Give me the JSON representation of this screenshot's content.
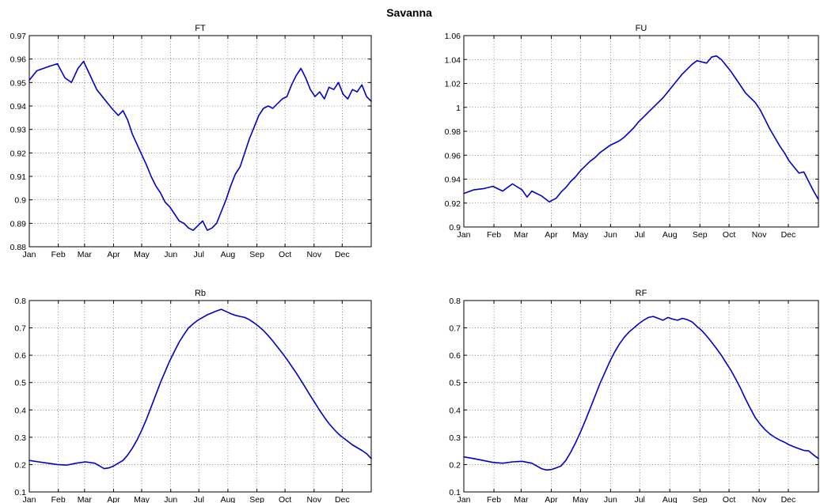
{
  "figure": {
    "title": "Savanna"
  },
  "chart_data": [
    {
      "id": "FT",
      "type": "line",
      "title": "FT",
      "xlabel": "",
      "ylabel": "",
      "x_tick_labels": [
        "Jan",
        "Feb",
        "Mar",
        "Apr",
        "May",
        "Jun",
        "Jul",
        "Aug",
        "Sep",
        "Oct",
        "Nov",
        "Dec"
      ],
      "y_tick_labels": [
        "0.88",
        "0.89",
        "0.9",
        "0.91",
        "0.92",
        "0.93",
        "0.94",
        "0.95",
        "0.96",
        "0.97"
      ],
      "xlim": [
        0,
        365
      ],
      "ylim": [
        0.88,
        0.97
      ],
      "grid": true,
      "color": "#0000cc",
      "series": [
        {
          "x": [
            0,
            8,
            15,
            22,
            30,
            38,
            45,
            52,
            58,
            65,
            72,
            80,
            88,
            95,
            100,
            105,
            110,
            118,
            125,
            130,
            135,
            140,
            145,
            150,
            155,
            160,
            165,
            170,
            175,
            180,
            185,
            190,
            195,
            200,
            205,
            210,
            215,
            220,
            225,
            230,
            235,
            240,
            245,
            250,
            255,
            260,
            265,
            270,
            275,
            280,
            285,
            290,
            295,
            300,
            305,
            310,
            315,
            320,
            325,
            330,
            335,
            340,
            345,
            350,
            355,
            360,
            365
          ],
          "y": [
            0.951,
            0.955,
            0.956,
            0.957,
            0.958,
            0.952,
            0.95,
            0.956,
            0.959,
            0.953,
            0.947,
            0.943,
            0.939,
            0.936,
            0.938,
            0.934,
            0.928,
            0.921,
            0.915,
            0.91,
            0.906,
            0.903,
            0.899,
            0.897,
            0.894,
            0.891,
            0.89,
            0.888,
            0.887,
            0.889,
            0.891,
            0.887,
            0.888,
            0.89,
            0.895,
            0.9,
            0.906,
            0.911,
            0.914,
            0.92,
            0.926,
            0.931,
            0.936,
            0.939,
            0.94,
            0.939,
            0.941,
            0.943,
            0.944,
            0.949,
            0.953,
            0.956,
            0.952,
            0.947,
            0.944,
            0.946,
            0.943,
            0.948,
            0.947,
            0.95,
            0.945,
            0.943,
            0.947,
            0.946,
            0.949,
            0.944,
            0.942
          ]
        }
      ]
    },
    {
      "id": "FU",
      "type": "line",
      "title": "FU",
      "xlabel": "",
      "ylabel": "",
      "x_tick_labels": [
        "Jan",
        "Feb",
        "Mar",
        "Apr",
        "May",
        "Jun",
        "Jul",
        "Aug",
        "Sep",
        "Oct",
        "Nov",
        "Dec"
      ],
      "y_tick_labels": [
        "0.9",
        "0.92",
        "0.94",
        "0.96",
        "0.98",
        "1",
        "1.02",
        "1.04",
        "1.06"
      ],
      "xlim": [
        0,
        365
      ],
      "ylim": [
        0.9,
        1.06
      ],
      "grid": true,
      "color": "#0000cc",
      "series": [
        {
          "x": [
            0,
            10,
            20,
            30,
            40,
            50,
            60,
            65,
            70,
            80,
            88,
            95,
            100,
            105,
            110,
            115,
            120,
            125,
            130,
            135,
            140,
            145,
            150,
            155,
            160,
            165,
            170,
            175,
            180,
            185,
            190,
            195,
            200,
            205,
            210,
            215,
            220,
            225,
            230,
            235,
            240,
            245,
            250,
            255,
            260,
            265,
            270,
            275,
            280,
            285,
            290,
            295,
            300,
            305,
            310,
            315,
            320,
            325,
            330,
            335,
            340,
            345,
            350,
            355,
            360,
            365
          ],
          "y": [
            0.928,
            0.931,
            0.932,
            0.934,
            0.93,
            0.936,
            0.931,
            0.925,
            0.93,
            0.926,
            0.921,
            0.924,
            0.929,
            0.933,
            0.938,
            0.942,
            0.947,
            0.951,
            0.955,
            0.958,
            0.962,
            0.965,
            0.968,
            0.97,
            0.972,
            0.975,
            0.979,
            0.983,
            0.988,
            0.992,
            0.996,
            1.0,
            1.004,
            1.008,
            1.013,
            1.018,
            1.023,
            1.028,
            1.032,
            1.036,
            1.039,
            1.038,
            1.037,
            1.042,
            1.043,
            1.04,
            1.035,
            1.03,
            1.024,
            1.018,
            1.012,
            1.008,
            1.004,
            0.998,
            0.99,
            0.982,
            0.975,
            0.968,
            0.962,
            0.955,
            0.95,
            0.945,
            0.946,
            0.938,
            0.93,
            0.923
          ]
        }
      ]
    },
    {
      "id": "Rb",
      "type": "line",
      "title": "Rb",
      "xlabel": "",
      "ylabel": "",
      "x_tick_labels": [
        "Jan",
        "Feb",
        "Mar",
        "Apr",
        "May",
        "Jun",
        "Jul",
        "Aug",
        "Sep",
        "Oct",
        "Nov",
        "Dec"
      ],
      "y_tick_labels": [
        "0.1",
        "0.2",
        "0.3",
        "0.4",
        "0.5",
        "0.6",
        "0.7",
        "0.8"
      ],
      "xlim": [
        0,
        365
      ],
      "ylim": [
        0.1,
        0.8
      ],
      "grid": true,
      "color": "#0000cc",
      "series": [
        {
          "x": [
            0,
            10,
            20,
            30,
            40,
            50,
            60,
            70,
            80,
            85,
            90,
            95,
            100,
            105,
            110,
            115,
            120,
            125,
            130,
            135,
            140,
            145,
            150,
            155,
            160,
            165,
            170,
            175,
            180,
            185,
            190,
            195,
            200,
            205,
            210,
            215,
            220,
            225,
            230,
            235,
            240,
            245,
            250,
            255,
            260,
            265,
            270,
            275,
            280,
            285,
            290,
            295,
            300,
            305,
            310,
            315,
            320,
            325,
            330,
            335,
            340,
            345,
            350,
            355,
            360,
            365
          ],
          "y": [
            0.215,
            0.21,
            0.205,
            0.2,
            0.198,
            0.205,
            0.21,
            0.205,
            0.185,
            0.188,
            0.195,
            0.205,
            0.215,
            0.235,
            0.26,
            0.29,
            0.325,
            0.365,
            0.41,
            0.455,
            0.5,
            0.54,
            0.58,
            0.615,
            0.648,
            0.675,
            0.7,
            0.715,
            0.728,
            0.738,
            0.748,
            0.755,
            0.762,
            0.768,
            0.76,
            0.752,
            0.746,
            0.742,
            0.738,
            0.73,
            0.718,
            0.705,
            0.69,
            0.672,
            0.652,
            0.63,
            0.608,
            0.585,
            0.56,
            0.535,
            0.508,
            0.48,
            0.452,
            0.425,
            0.398,
            0.373,
            0.35,
            0.33,
            0.312,
            0.298,
            0.285,
            0.272,
            0.262,
            0.252,
            0.24,
            0.222
          ]
        }
      ]
    },
    {
      "id": "RF",
      "type": "line",
      "title": "RF",
      "xlabel": "",
      "ylabel": "",
      "x_tick_labels": [
        "Jan",
        "Feb",
        "Mar",
        "Apr",
        "May",
        "Jun",
        "Jul",
        "Aug",
        "Sep",
        "Oct",
        "Nov",
        "Dec"
      ],
      "y_tick_labels": [
        "0.1",
        "0.2",
        "0.3",
        "0.4",
        "0.5",
        "0.6",
        "0.7",
        "0.8"
      ],
      "xlim": [
        0,
        365
      ],
      "ylim": [
        0.1,
        0.8
      ],
      "grid": true,
      "color": "#0000cc",
      "series": [
        {
          "x": [
            0,
            10,
            20,
            30,
            40,
            50,
            60,
            70,
            80,
            85,
            90,
            95,
            100,
            105,
            110,
            115,
            120,
            125,
            130,
            135,
            140,
            145,
            150,
            155,
            160,
            165,
            170,
            175,
            180,
            185,
            190,
            195,
            200,
            205,
            210,
            215,
            220,
            225,
            230,
            235,
            240,
            245,
            250,
            255,
            260,
            265,
            270,
            275,
            280,
            285,
            290,
            295,
            300,
            305,
            310,
            315,
            320,
            325,
            330,
            335,
            340,
            345,
            350,
            355,
            360,
            365
          ],
          "y": [
            0.228,
            0.222,
            0.215,
            0.208,
            0.205,
            0.21,
            0.212,
            0.205,
            0.185,
            0.18,
            0.182,
            0.188,
            0.195,
            0.215,
            0.245,
            0.28,
            0.318,
            0.36,
            0.405,
            0.45,
            0.495,
            0.535,
            0.575,
            0.61,
            0.64,
            0.665,
            0.685,
            0.7,
            0.715,
            0.728,
            0.738,
            0.742,
            0.735,
            0.728,
            0.738,
            0.732,
            0.728,
            0.735,
            0.73,
            0.722,
            0.705,
            0.69,
            0.67,
            0.648,
            0.625,
            0.6,
            0.572,
            0.545,
            0.512,
            0.478,
            0.44,
            0.405,
            0.372,
            0.348,
            0.328,
            0.312,
            0.3,
            0.29,
            0.282,
            0.272,
            0.265,
            0.258,
            0.252,
            0.25,
            0.235,
            0.222
          ]
        }
      ]
    }
  ]
}
